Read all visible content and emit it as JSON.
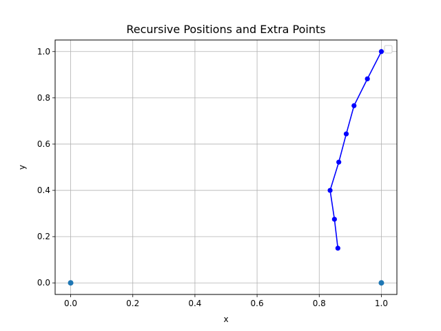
{
  "chart_data": {
    "type": "line",
    "title": "Recursive Positions and Extra Points",
    "xlabel": "x",
    "ylabel": "y",
    "xlim": [
      -0.05,
      1.05
    ],
    "ylim": [
      -0.05,
      1.05
    ],
    "xticks": [
      0.0,
      0.2,
      0.4,
      0.6,
      0.8,
      1.0
    ],
    "yticks": [
      0.0,
      0.2,
      0.4,
      0.6,
      0.8,
      1.0
    ],
    "xtick_labels": [
      "0.0",
      "0.2",
      "0.4",
      "0.6",
      "0.8",
      "1.0"
    ],
    "ytick_labels": [
      "0.0",
      "0.2",
      "0.4",
      "0.6",
      "0.8",
      "1.0"
    ],
    "grid": true,
    "legend": "top-right, empty",
    "series": [
      {
        "kind": "line",
        "color": "#0000ff",
        "marker": "circle",
        "x": [
          1.0,
          0.955,
          0.912,
          0.887,
          0.863,
          0.835,
          0.849,
          0.86
        ],
        "y": [
          1.0,
          0.882,
          0.766,
          0.644,
          0.522,
          0.4,
          0.275,
          0.15
        ]
      },
      {
        "kind": "scatter",
        "color": "#1f77b4",
        "marker": "circle",
        "x": [
          0.0,
          1.0
        ],
        "y": [
          0.0,
          0.0
        ]
      }
    ]
  }
}
